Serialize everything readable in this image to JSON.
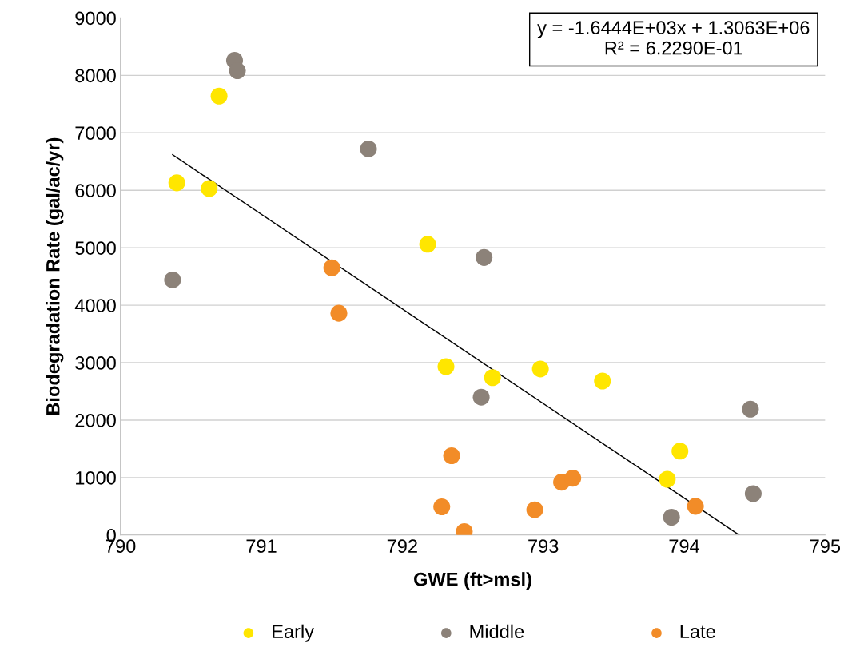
{
  "chart_data": {
    "type": "scatter",
    "xlabel": "GWE (ft>msl)",
    "ylabel": "Biodegradation Rate (gal/ac/yr)",
    "annotations": [
      "y = -1.6444E+03x + 1.3063E+06\nR² = 6.2290E-01"
    ],
    "series": [
      {
        "name": "Early",
        "color": "#ffe600",
        "x": [
          790.4,
          790.63,
          790.7,
          792.18,
          792.31,
          792.64,
          792.98,
          793.42,
          793.88,
          793.97
        ],
        "values": [
          6130,
          6030,
          7640,
          5060,
          2930,
          2740,
          2890,
          2680,
          970,
          1460
        ]
      },
      {
        "name": "Middle",
        "color": "#8c8279",
        "x": [
          790.81,
          790.83,
          790.37,
          791.76,
          792.58,
          792.56,
          794.47,
          794.49,
          793.91
        ],
        "values": [
          8260,
          8080,
          4440,
          6720,
          4830,
          2400,
          2190,
          720,
          310
        ]
      },
      {
        "name": "Late",
        "color": "#f28c28",
        "x": [
          791.5,
          791.55,
          792.35,
          792.28,
          792.44,
          792.94,
          793.13,
          793.21,
          794.08
        ],
        "values": [
          4650,
          3860,
          1380,
          490,
          60,
          440,
          920,
          990,
          500
        ]
      },
      {
        "type": "line",
        "color": "#000000",
        "marker": "none",
        "x": [
          790.37,
          794.39
        ],
        "values": [
          6620,
          0
        ]
      }
    ],
    "xlim": [
      790,
      795
    ],
    "xticks": [
      790,
      791,
      792,
      793,
      794,
      795
    ],
    "ylim": [
      0,
      9000
    ],
    "yticks": [
      0,
      1000,
      2000,
      3000,
      4000,
      5000,
      6000,
      7000,
      8000,
      9000
    ],
    "grid": "y",
    "legend": "bottom",
    "marker": "circle"
  }
}
